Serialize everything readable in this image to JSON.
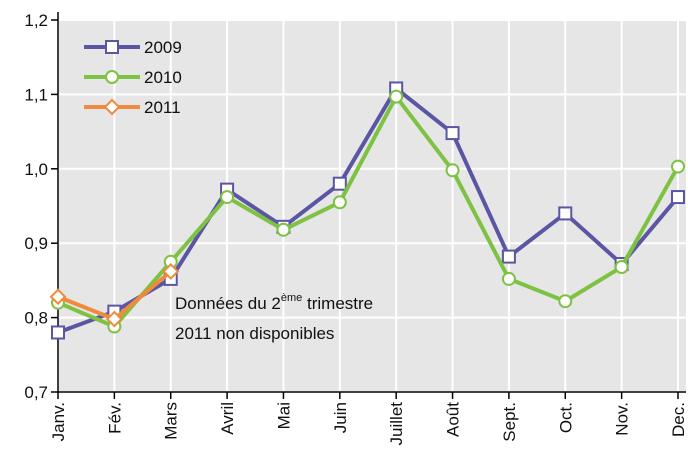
{
  "chart_data": {
    "type": "line",
    "categories": [
      "Janv.",
      "Fév.",
      "Mars",
      "Avril",
      "Mai",
      "Juin",
      "Juillet",
      "Août",
      "Sept.",
      "Oct.",
      "Nov.",
      "Dec."
    ],
    "series": [
      {
        "name": "2009",
        "color": "#5b56a3",
        "marker": "square",
        "values": [
          0.78,
          0.808,
          0.852,
          0.972,
          0.922,
          0.98,
          1.108,
          1.048,
          0.882,
          0.94,
          0.872,
          0.962
        ]
      },
      {
        "name": "2010",
        "color": "#7dc242",
        "marker": "circle",
        "values": [
          0.82,
          0.788,
          0.875,
          0.962,
          0.918,
          0.955,
          1.097,
          0.998,
          0.852,
          0.822,
          0.868,
          1.003
        ]
      },
      {
        "name": "2011",
        "color": "#f08a3c",
        "marker": "diamond",
        "values": [
          0.828,
          0.798,
          0.862,
          null,
          null,
          null,
          null,
          null,
          null,
          null,
          null,
          null
        ]
      }
    ],
    "ylim": [
      0.7,
      1.2
    ],
    "yticks": [
      {
        "value": 0.7,
        "label": "0,7"
      },
      {
        "value": 0.8,
        "label": "0,8"
      },
      {
        "value": 0.9,
        "label": "0,9"
      },
      {
        "value": 1.0,
        "label": "1,0"
      },
      {
        "value": 1.1,
        "label": "1,1"
      },
      {
        "value": 1.2,
        "label": "1,2"
      }
    ],
    "grid": true,
    "legend": "top-left",
    "annotation": {
      "line1": [
        "Données du 2",
        "ème",
        " trimestre"
      ],
      "line2": "2011 non disponibles"
    }
  }
}
